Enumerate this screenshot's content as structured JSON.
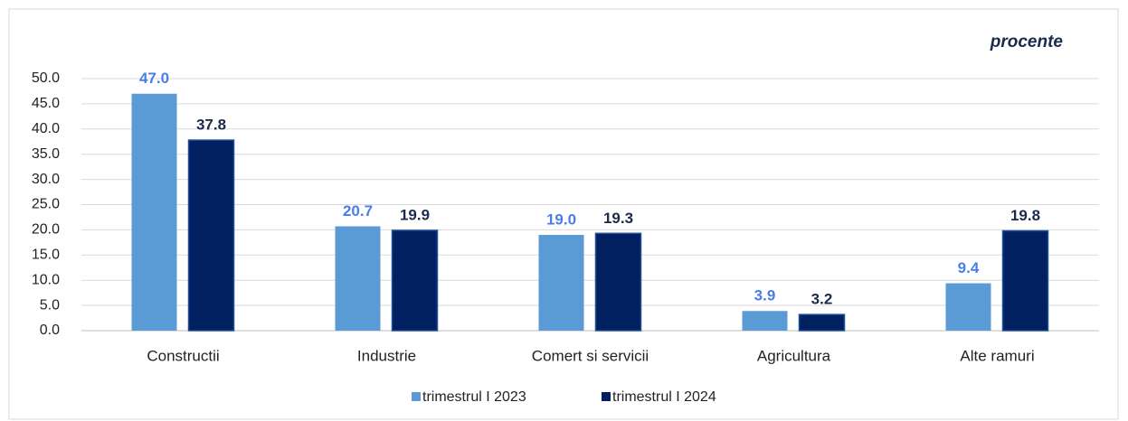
{
  "chart_data": {
    "type": "bar",
    "annotation": "procente",
    "categories": [
      "Constructii",
      "Industrie",
      "Comert si servicii",
      "Agricultura",
      "Alte ramuri"
    ],
    "series": [
      {
        "name": "trimestrul I 2023",
        "color": "#5b9bd5",
        "label_color": "#4a7ee6",
        "values": [
          47.0,
          20.7,
          19.0,
          3.9,
          9.4
        ],
        "value_labels": [
          "47.0",
          "20.7",
          "19.0",
          "3.9",
          "9.4"
        ]
      },
      {
        "name": "trimestrul I 2024",
        "color": "#002060",
        "label_color": "#1a2b4c",
        "values": [
          37.8,
          19.9,
          19.3,
          3.2,
          19.8
        ],
        "value_labels": [
          "37.8",
          "19.9",
          "19.3",
          "3.2",
          "19.8"
        ]
      }
    ],
    "ylim": [
      0,
      50
    ],
    "yticks": [
      {
        "value": 0,
        "label": "0.0"
      },
      {
        "value": 5,
        "label": "5.0"
      },
      {
        "value": 10,
        "label": "10.0"
      },
      {
        "value": 15,
        "label": "15.0"
      },
      {
        "value": 20,
        "label": "20.0"
      },
      {
        "value": 25,
        "label": "25.0"
      },
      {
        "value": 30,
        "label": "30.0"
      },
      {
        "value": 35,
        "label": "35.0"
      },
      {
        "value": 40,
        "label": "40.0"
      },
      {
        "value": 45,
        "label": "45.0"
      },
      {
        "value": 50,
        "label": "50.0"
      }
    ],
    "grid": true,
    "legend": "bottom"
  }
}
